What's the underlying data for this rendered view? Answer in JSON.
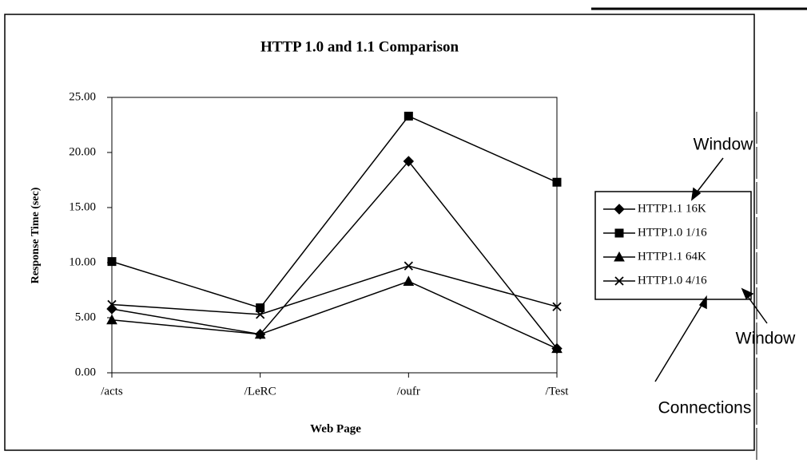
{
  "chart_data": {
    "type": "line",
    "title": "HTTP 1.0 and 1.1 Comparison",
    "x_label": "Web Page",
    "y_label": "Response Time (sec)",
    "categories": [
      "/acts",
      "/LeRC",
      "/oufr",
      "/Test"
    ],
    "series": [
      {
        "name": "HTTP1.1 16K",
        "color": "#000000",
        "marker": "diamond",
        "values": [
          5.8,
          3.5,
          19.2,
          2.2
        ]
      },
      {
        "name": "HTTP1.0 1/16",
        "color": "#000000",
        "marker": "square",
        "values": [
          10.1,
          5.9,
          23.3,
          17.3
        ]
      },
      {
        "name": "HTTP1.1 64K",
        "color": "#000000",
        "marker": "triangle",
        "values": [
          4.8,
          3.5,
          8.3,
          2.2
        ]
      },
      {
        "name": "HTTP1.0 4/16",
        "color": "#000000",
        "marker": "x",
        "values": [
          6.2,
          5.3,
          9.7,
          6.0
        ]
      }
    ],
    "ylim": [
      0,
      25
    ],
    "yticks": [
      {
        "value": 0,
        "label": "0.00"
      },
      {
        "value": 5,
        "label": "5.00"
      },
      {
        "value": 10,
        "label": "10.00"
      },
      {
        "value": 15,
        "label": "15.00"
      },
      {
        "value": 20,
        "label": "20.00"
      },
      {
        "value": 25,
        "label": "25.00"
      }
    ],
    "grid": false,
    "legend": "right",
    "annotations": [
      "Window",
      "Window",
      "Connections"
    ]
  }
}
